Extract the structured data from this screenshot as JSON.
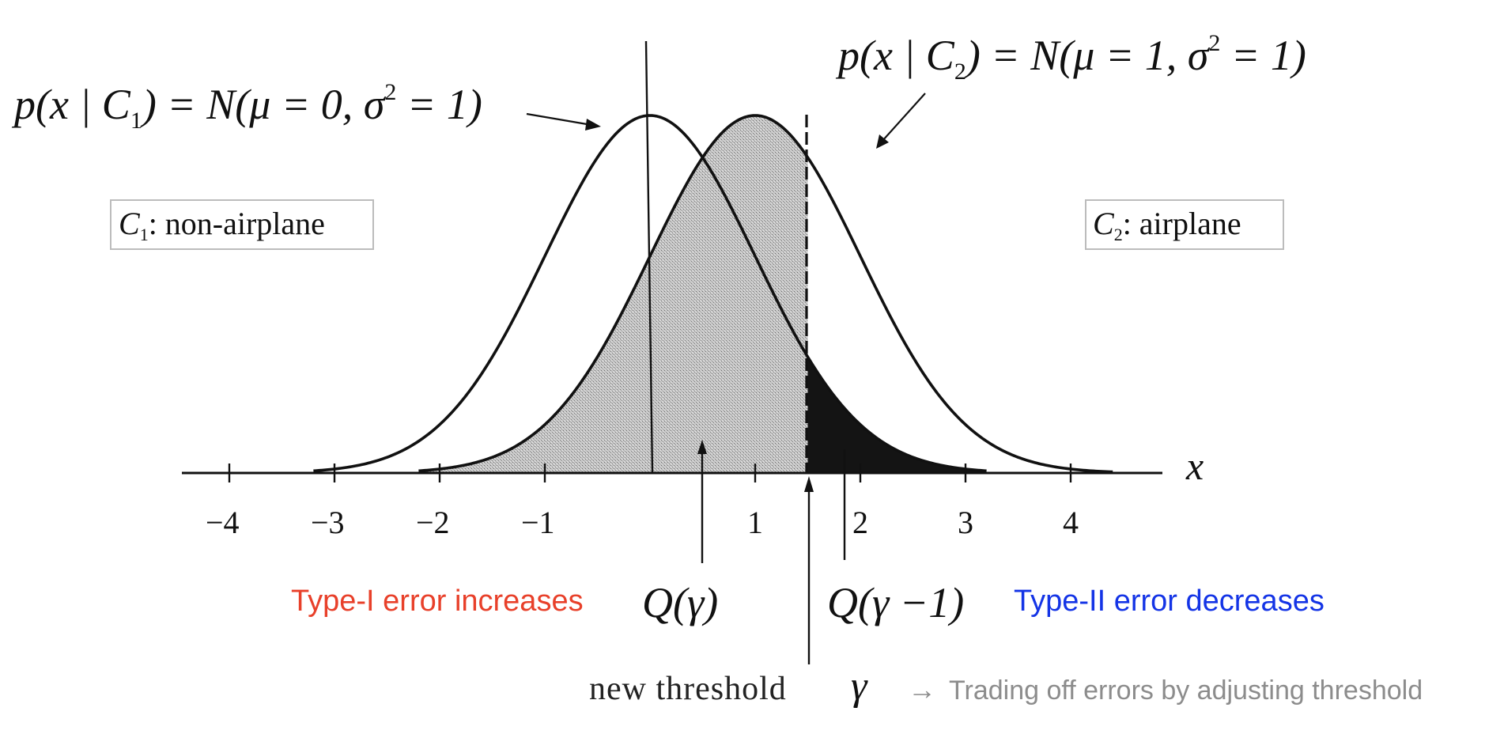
{
  "formulas": {
    "c1_density": {
      "lhs": "p(x | C",
      "sub": "1",
      "rhs_a": ") = N(μ = 0, σ",
      "sup": "2",
      "rhs_b": " = 1)"
    },
    "c2_density": {
      "lhs": "p(x | C",
      "sub": "2",
      "rhs_a": ") = N(μ = 1, σ",
      "sup": "2",
      "rhs_b": " = 1)"
    }
  },
  "classes": {
    "c1": {
      "symbol": "C",
      "sub": "1",
      "label": ":  non-airplane"
    },
    "c2": {
      "symbol": "C",
      "sub": "2",
      "label": ":  airplane"
    }
  },
  "axis": {
    "label": "x",
    "ticks": [
      "−4",
      "−3",
      "−2",
      "−1",
      "1",
      "2",
      "3",
      "4"
    ]
  },
  "annotations": {
    "q_gamma": "Q(γ)",
    "q_gamma_minus_1": "Q(γ −1)",
    "new_threshold_text": "new threshold",
    "gamma_symbol": "γ",
    "type1": "Type-I error increases",
    "type2": "Type-II error decreases",
    "arrow": "→",
    "trading_off": "Trading off errors by adjusting threshold"
  },
  "colors": {
    "type1": "#e8402a",
    "type2": "#1434e6",
    "caption": "#8c8c8c",
    "ink": "#111111",
    "shade_light": "#bdbdbd",
    "shade_dark": "#141414"
  },
  "curves": {
    "c1": {
      "mean": 0,
      "variance": 1
    },
    "c2": {
      "mean": 1,
      "variance": 1
    }
  },
  "threshold": {
    "original": 0,
    "new": 1.5
  }
}
